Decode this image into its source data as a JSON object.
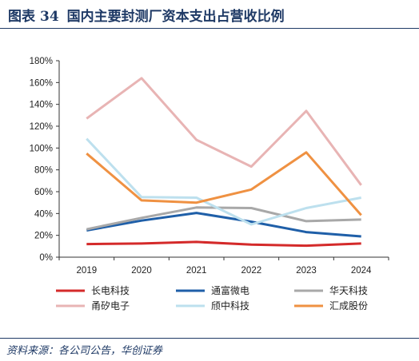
{
  "header": {
    "figure_label": "图表",
    "figure_number": "34",
    "title": "国内主要封测厂资本支出占营收比例"
  },
  "footer": {
    "source": "资料来源：各公司公告，华创证券"
  },
  "chart_data": {
    "type": "line",
    "x": [
      "2019",
      "2020",
      "2021",
      "2022",
      "2023",
      "2024"
    ],
    "ylim": [
      0,
      180
    ],
    "yticks": [
      0,
      20,
      40,
      60,
      80,
      100,
      120,
      140,
      160,
      180
    ],
    "ytick_labels": [
      "0%",
      "20%",
      "40%",
      "60%",
      "80%",
      "100%",
      "120%",
      "140%",
      "160%",
      "180%"
    ],
    "grid": false,
    "legend_position": "bottom",
    "series": [
      {
        "name": "长电科技",
        "color": "#d42a2a",
        "values": [
          12,
          12.5,
          14,
          11.5,
          10.5,
          12.5
        ]
      },
      {
        "name": "通富微电",
        "color": "#1f5fa8",
        "values": [
          24.5,
          33.5,
          40.5,
          32.5,
          23,
          19
        ]
      },
      {
        "name": "华天科技",
        "color": "#a8a8a8",
        "values": [
          25.5,
          36,
          45.5,
          45,
          33,
          34.5
        ]
      },
      {
        "name": "甬矽电子",
        "color": "#e8b4b4",
        "values": [
          127,
          164,
          107.5,
          83,
          134,
          66
        ]
      },
      {
        "name": "颀中科技",
        "color": "#bde0ee",
        "values": [
          108.5,
          55,
          54.5,
          30,
          45,
          54.5
        ]
      },
      {
        "name": "汇成股份",
        "color": "#ef9142",
        "values": [
          95,
          52,
          50,
          62,
          96,
          38.5
        ]
      }
    ]
  }
}
